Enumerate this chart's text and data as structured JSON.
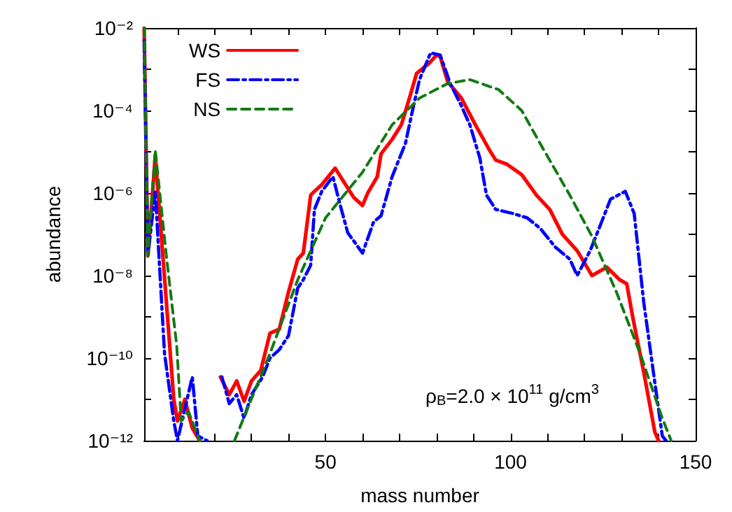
{
  "chart_data": {
    "type": "line",
    "xlabel": "mass number",
    "ylabel": "abundance",
    "log": "y",
    "xlim": [
      1,
      150
    ],
    "ylim": [
      1e-12,
      0.01
    ],
    "xticks": [
      {
        "value": 10,
        "label": null
      },
      {
        "value": 20,
        "label": null
      },
      {
        "value": 30,
        "label": null
      },
      {
        "value": 40,
        "label": null
      },
      50,
      {
        "value": 60,
        "label": null
      },
      {
        "value": 70,
        "label": null
      },
      {
        "value": 80,
        "label": null
      },
      {
        "value": 90,
        "label": null
      },
      100,
      {
        "value": 110,
        "label": null
      },
      {
        "value": 120,
        "label": null
      },
      {
        "value": 130,
        "label": null
      },
      {
        "value": 140,
        "label": null
      },
      150
    ],
    "yticks": [
      {
        "value": 1e-12,
        "label": "10⁻¹²"
      },
      {
        "value": 1e-11,
        "label": null
      },
      {
        "value": 1e-10,
        "label": "10⁻¹⁰"
      },
      {
        "value": 1e-09,
        "label": null
      },
      {
        "value": 1e-08,
        "label": "10⁻⁸"
      },
      {
        "value": 1e-07,
        "label": null
      },
      {
        "value": 1e-06,
        "label": "10⁻⁶"
      },
      {
        "value": 1e-05,
        "label": null
      },
      {
        "value": 0.0001,
        "label": "10⁻⁴"
      },
      {
        "value": 0.001,
        "label": null
      },
      {
        "value": 0.01,
        "label": "10⁻²"
      }
    ],
    "legend": "top left",
    "grid": false,
    "marker": "none",
    "annotations": [
      "ρ$_{B}$=2.0 × 10$^{11}$ g/cm$^{3}$"
    ],
    "series": [
      {
        "name": "WS",
        "color": "#ff0000",
        "line_style": "solid",
        "x": [
          1,
          2,
          4,
          9,
          10,
          12,
          14,
          16,
          20,
          21.6,
          24,
          26,
          28,
          30,
          32.5,
          35,
          37.5,
          40,
          42.5,
          44,
          46,
          47,
          49,
          52.6,
          57.6,
          60,
          61.4,
          64,
          65,
          68,
          70.5,
          73,
          74.6,
          78,
          80,
          81,
          83,
          86.7,
          90.5,
          94.3,
          96,
          99,
          103,
          107,
          110.6,
          114,
          118,
          122,
          126,
          129.5,
          131.4,
          133,
          136,
          139,
          140
        ],
        "values": [
          0.01,
          3e-08,
          8e-06,
          1e-11,
          3e-12,
          1e-11,
          2e-12,
          1e-12,
          null,
          3.5e-11,
          1.3e-11,
          2.8e-11,
          9e-12,
          2.8e-11,
          5e-11,
          4e-10,
          5e-10,
          4e-09,
          2.5e-08,
          3.5e-08,
          8.9e-07,
          1.1e-06,
          1.6e-06,
          4e-06,
          7.9e-07,
          5e-07,
          1e-06,
          2.5e-06,
          8.9e-06,
          2e-05,
          4.5e-05,
          0.00025,
          0.00079,
          0.0014,
          0.0022,
          0.002,
          0.0005,
          0.0002,
          4.5e-05,
          1.1e-05,
          6.3e-06,
          5e-06,
          2.8e-06,
          8.9e-07,
          4e-07,
          1e-07,
          4e-08,
          1e-08,
          1.6e-08,
          7.9e-09,
          6.3e-09,
          1e-09,
          4.5e-11,
          1.6e-12,
          1e-12
        ]
      },
      {
        "name": "FS",
        "color": "#0000ff",
        "line_style": "dashdot",
        "x": [
          1,
          2,
          4,
          6.5,
          9,
          10,
          14,
          15.5,
          18,
          20,
          22,
          24,
          26,
          28,
          30,
          33,
          35,
          37.5,
          40,
          42.5,
          44,
          46,
          47,
          49,
          52,
          54,
          56,
          60,
          63,
          65,
          68,
          71.6,
          73.5,
          75.4,
          78.4,
          81,
          83.7,
          86.7,
          89,
          91.7,
          93.5,
          96,
          100.6,
          104.5,
          108,
          112,
          116,
          118,
          121.5,
          124.6,
          127,
          131,
          133.4,
          136,
          138.6,
          141,
          142
        ],
        "values": [
          0.005,
          3e-08,
          1.1e-06,
          1.3e-10,
          3e-12,
          1e-12,
          3.5e-11,
          1.3e-12,
          1e-12,
          null,
          3.5e-11,
          7.9e-12,
          1.3e-11,
          3.5e-12,
          1.3e-11,
          3.5e-11,
          1e-10,
          1.6e-10,
          3.5e-10,
          5e-09,
          7.9e-09,
          1.8e-08,
          4e-07,
          1.1e-06,
          2.5e-06,
          5e-07,
          1.1e-07,
          3.5e-08,
          2e-07,
          2.8e-07,
          2.5e-06,
          1.6e-05,
          0.0001,
          0.00056,
          0.0025,
          0.0022,
          0.00045,
          0.00013,
          4.5e-05,
          7.1e-06,
          8.9e-07,
          4e-07,
          3.2e-07,
          2.5e-07,
          1.4e-07,
          5e-08,
          2.5e-08,
          1e-08,
          4e-08,
          2e-07,
          7.1e-07,
          1.1e-06,
          3.2e-07,
          2.2e-09,
          4.5e-11,
          1.3e-12,
          1e-12
        ]
      },
      {
        "name": "NS",
        "color": "#127a12",
        "line_style": "dashed",
        "x": [
          1,
          2,
          4,
          7,
          9.8,
          11,
          13,
          16,
          20,
          25.4,
          35,
          42.5,
          50,
          60,
          68,
          75.4,
          83,
          89,
          96.8,
          103,
          109,
          116,
          122,
          128.6,
          135,
          141,
          143.4
        ],
        "values": [
          0.01,
          3e-08,
          1.1e-05,
          3e-08,
          2e-10,
          3e-12,
          5e-12,
          1e-12,
          null,
          1e-12,
          1.3e-10,
          7.9e-09,
          2.5e-07,
          3.2e-06,
          4.5e-05,
          0.0002,
          0.00045,
          0.00056,
          0.00032,
          0.0001,
          1.1e-05,
          8.9e-07,
          8.9e-08,
          4e-09,
          1.3e-10,
          3.5e-12,
          1e-12
        ]
      }
    ]
  }
}
